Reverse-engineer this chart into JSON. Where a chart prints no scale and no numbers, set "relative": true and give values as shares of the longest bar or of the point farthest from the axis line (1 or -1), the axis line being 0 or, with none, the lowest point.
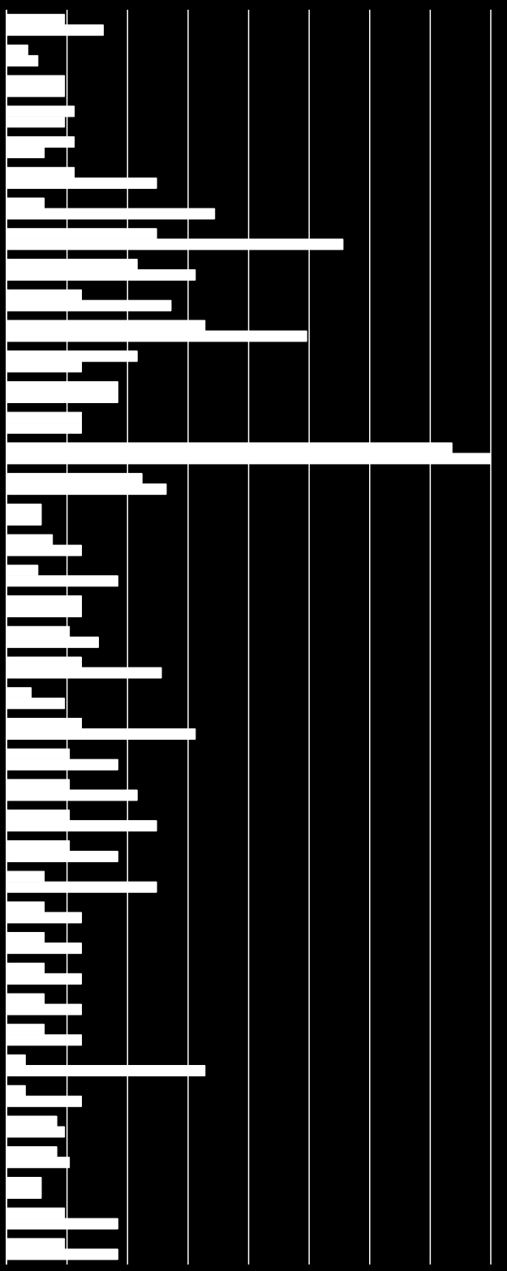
{
  "chart_data": {
    "type": "bar",
    "orientation": "horizontal",
    "relative": true,
    "grid": "x",
    "categories": [
      null,
      null,
      null,
      null,
      null,
      null,
      null,
      null,
      null,
      null,
      null,
      null,
      null,
      null,
      null,
      null,
      null,
      null,
      null,
      null,
      null,
      null,
      null,
      null,
      null,
      null,
      null,
      null,
      null,
      null,
      null,
      null,
      null,
      null,
      null,
      null,
      null,
      null,
      null,
      null,
      null
    ],
    "series": [
      {
        "color": "#ffffff",
        "values": [
          0.12,
          0.044,
          0.12,
          0.14,
          0.14,
          0.14,
          0.078,
          0.31,
          0.27,
          0.155,
          0.41,
          0.27,
          0.23,
          0.155,
          0.92,
          0.28,
          0.072,
          0.095,
          0.065,
          0.155,
          0.13,
          0.155,
          0.051,
          0.155,
          0.13,
          0.13,
          0.13,
          0.13,
          0.078,
          0.078,
          0.078,
          0.078,
          0.078,
          0.078,
          0.039,
          0.039,
          0.104,
          0.104,
          0.072,
          0.12,
          0.12
        ]
      },
      {
        "color": "#ffffff",
        "values": [
          0.2,
          0.065,
          0.12,
          0.12,
          0.078,
          0.31,
          0.43,
          0.695,
          0.39,
          0.34,
          0.62,
          0.155,
          0.23,
          0.155,
          1,
          0.33,
          0.072,
          0.155,
          0.23,
          0.155,
          0.19,
          0.32,
          0.12,
          0.39,
          0.23,
          0.27,
          0.31,
          0.23,
          0.31,
          0.155,
          0.155,
          0.155,
          0.155,
          0.155,
          0.41,
          0.155,
          0.12,
          0.13,
          0.072,
          0.23,
          0.23
        ]
      }
    ]
  }
}
